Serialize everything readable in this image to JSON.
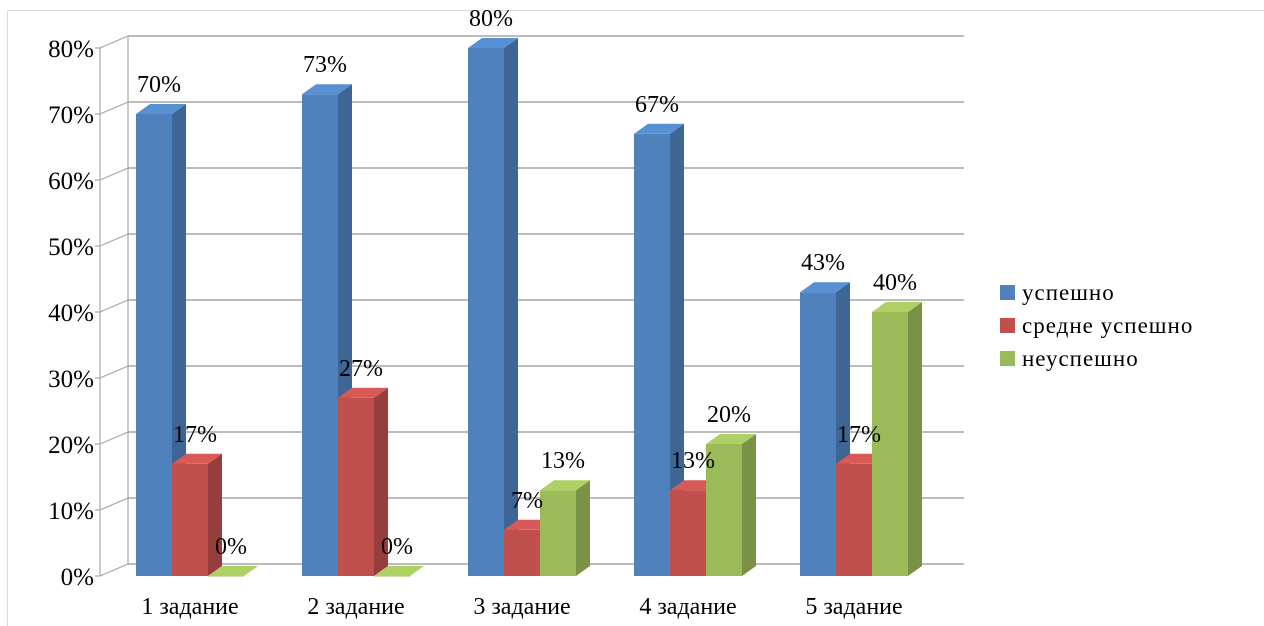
{
  "chart_data": {
    "type": "bar",
    "title": "",
    "xlabel": "",
    "ylabel": "",
    "categories": [
      "1 задание",
      "2 задание",
      "3 задание",
      "4 задание",
      "5 задание"
    ],
    "series": [
      {
        "name": "успешно",
        "color": "#4f81bd",
        "values": [
          70,
          73,
          80,
          67,
          43
        ],
        "labels": [
          "70%",
          "73%",
          "80%",
          "67%",
          "43%"
        ]
      },
      {
        "name": "средне успешно",
        "color": "#c0504d",
        "values": [
          17,
          27,
          7,
          13,
          17
        ],
        "labels": [
          "17%",
          "27%",
          "7%",
          "13%",
          "17%"
        ]
      },
      {
        "name": "неуспешно",
        "color": "#9bbb59",
        "values": [
          0,
          0,
          13,
          20,
          40
        ],
        "labels": [
          "0%",
          "0%",
          "13%",
          "20%",
          "40%"
        ]
      }
    ],
    "y_ticks": [
      "0%",
      "10%",
      "20%",
      "30%",
      "40%",
      "50%",
      "60%",
      "70%",
      "80%"
    ],
    "ylim": [
      0,
      80
    ],
    "grid": true,
    "projection": "3d-column",
    "legend_position": "right"
  }
}
